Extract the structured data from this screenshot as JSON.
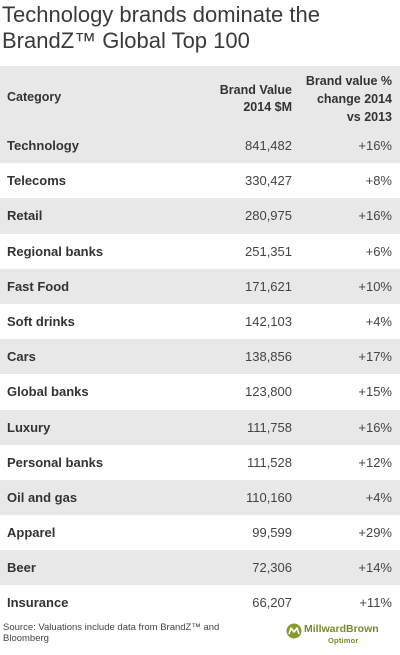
{
  "title": "Technology brands dominate the BrandZ™ Global Top 100",
  "header": {
    "category": "Category",
    "brand_value": "Brand Value\n2014 $M",
    "change": "Brand value %\nchange 2014\nvs 2013"
  },
  "chart_data": {
    "type": "table",
    "title": "Technology brands dominate the BrandZ™ Global Top 100",
    "columns": [
      "Category",
      "Brand Value 2014 $M",
      "Brand value % change 2014 vs 2013"
    ],
    "rows": [
      {
        "category": "Technology",
        "value": "841,482",
        "change": "+16%"
      },
      {
        "category": "Telecoms",
        "value": "330,427",
        "change": "+8%"
      },
      {
        "category": "Retail",
        "value": "280,975",
        "change": "+16%"
      },
      {
        "category": "Regional banks",
        "value": "251,351",
        "change": "+6%"
      },
      {
        "category": "Fast Food",
        "value": "171,621",
        "change": "+10%"
      },
      {
        "category": "Soft drinks",
        "value": "142,103",
        "change": "+4%"
      },
      {
        "category": "Cars",
        "value": "138,856",
        "change": "+17%"
      },
      {
        "category": "Global banks",
        "value": "123,800",
        "change": "+15%"
      },
      {
        "category": "Luxury",
        "value": "111,758",
        "change": "+16%"
      },
      {
        "category": "Personal banks",
        "value": "111,528",
        "change": "+12%"
      },
      {
        "category": "Oil and gas",
        "value": "110,160",
        "change": "+4%"
      },
      {
        "category": "Apparel",
        "value": "99,599",
        "change": "+29%"
      },
      {
        "category": "Beer",
        "value": "72,306",
        "change": "+14%"
      },
      {
        "category": "Insurance",
        "value": "66,207",
        "change": "+11%"
      }
    ]
  },
  "footer": {
    "source": "Source: Valuations include data from BrandZ™ and Bloomberg",
    "brand_name": "MillwardBrown",
    "brand_sub": "Optimor"
  },
  "colors": {
    "row_shade": "#e8e8e8",
    "brand": "#7a8a2a"
  },
  "icons": {
    "logo": "millwardbrown-logo-icon"
  }
}
